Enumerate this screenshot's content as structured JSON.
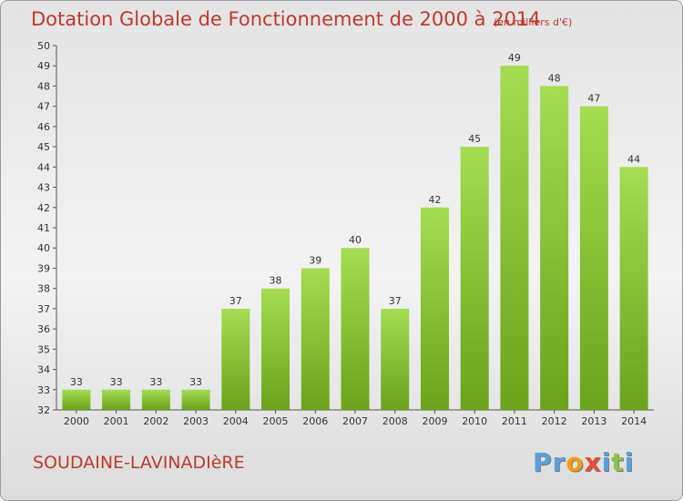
{
  "title": "Dotation Globale de Fonctionnement de 2000 à 2014",
  "unit_note": "(en milliers d'€)",
  "commune": "SOUDAINE-LAVINADIèRE",
  "logo": {
    "letters": [
      "P",
      "r",
      "o",
      "x",
      "i",
      "t",
      "i"
    ],
    "colors": [
      "#5aa0dc",
      "#5aa0dc",
      "#f39c12",
      "#e74c3c",
      "#5aa0dc",
      "#8bc34a",
      "#5aa0dc"
    ]
  },
  "colors": {
    "bar_light": "#a4dc52",
    "bar_dark": "#6aa31a",
    "text_accent": "#c0392b"
  },
  "chart_data": {
    "type": "bar",
    "categories": [
      "2000",
      "2001",
      "2002",
      "2003",
      "2004",
      "2005",
      "2006",
      "2007",
      "2008",
      "2009",
      "2010",
      "2011",
      "2012",
      "2013",
      "2014"
    ],
    "values": [
      33,
      33,
      33,
      33,
      37,
      38,
      39,
      40,
      37,
      42,
      45,
      49,
      48,
      47,
      44
    ],
    "title": "Dotation Globale de Fonctionnement de 2000 à 2014",
    "subtitle": "(en milliers d'€)",
    "xlabel": "",
    "ylabel": "",
    "ylim": [
      32,
      50
    ],
    "yticks": [
      32,
      33,
      34,
      35,
      36,
      37,
      38,
      39,
      40,
      41,
      42,
      43,
      44,
      45,
      46,
      47,
      48,
      49,
      50
    ],
    "grid": false,
    "legend": "none"
  }
}
